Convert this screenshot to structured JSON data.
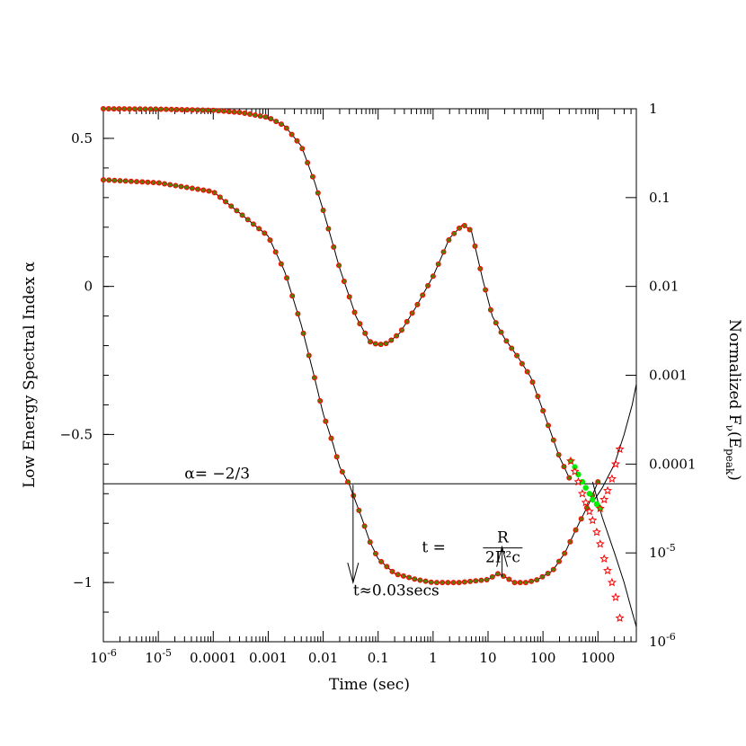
{
  "chart_data": {
    "type": "scatter",
    "title": "",
    "xlabel": "Time (sec)",
    "ylabel_left": "Low Energy Spectral Index α",
    "ylabel_right": "Normalized F_ν(E_peak)",
    "ylabel_right_parts": {
      "base": "Normalized F",
      "sub1": "ν",
      "mid": "(E",
      "sub2": "peak",
      "end": ")"
    },
    "x_scale": "log",
    "xlim": [
      1e-06,
      5000
    ],
    "ylim_left": [
      -1.2,
      0.6
    ],
    "ylim_right": [
      1e-06,
      1
    ],
    "y_scale_right": "log",
    "grid": false,
    "x_ticks": [
      {
        "value": 1e-06,
        "label": "10",
        "exp": "-6"
      },
      {
        "value": 1e-05,
        "label": "10",
        "exp": "-5"
      },
      {
        "value": 0.0001,
        "label": "0.0001",
        "exp": ""
      },
      {
        "value": 0.001,
        "label": "0.001",
        "exp": ""
      },
      {
        "value": 0.01,
        "label": "0.01",
        "exp": ""
      },
      {
        "value": 0.1,
        "label": "0.1",
        "exp": ""
      },
      {
        "value": 1,
        "label": "1",
        "exp": ""
      },
      {
        "value": 10,
        "label": "10",
        "exp": ""
      },
      {
        "value": 100,
        "label": "100",
        "exp": ""
      },
      {
        "value": 1000,
        "label": "1000",
        "exp": ""
      }
    ],
    "y_left_ticks": [
      {
        "value": 0.5,
        "label": "0.5"
      },
      {
        "value": 0,
        "label": "0"
      },
      {
        "value": -0.5,
        "label": "−0.5"
      },
      {
        "value": -1,
        "label": "−1"
      }
    ],
    "y_right_ticks": [
      {
        "value": 1,
        "label": "1",
        "exp": ""
      },
      {
        "value": 0.1,
        "label": "0.1",
        "exp": ""
      },
      {
        "value": 0.01,
        "label": "0.01",
        "exp": ""
      },
      {
        "value": 0.001,
        "label": "0.001",
        "exp": ""
      },
      {
        "value": 0.0001,
        "label": "0.0001",
        "exp": ""
      },
      {
        "value": 1e-05,
        "label": "10",
        "exp": "-5"
      },
      {
        "value": 1e-06,
        "label": "10",
        "exp": "-6"
      }
    ],
    "reference_line": {
      "value": -0.6667,
      "label": "α=  −2/3"
    },
    "series": [
      {
        "axis": "right",
        "x": [
          1e-06,
          1e-05,
          0.0001,
          0.0003,
          0.001,
          0.002,
          0.004,
          0.007,
          0.01,
          0.02,
          0.04,
          0.07,
          0.1,
          0.15,
          0.25,
          0.5,
          1,
          2,
          3.5,
          5,
          8,
          12,
          20,
          35,
          60,
          100,
          200,
          300
        ],
        "y": [
          1.0,
          0.99,
          0.96,
          0.91,
          0.8,
          0.64,
          0.38,
          0.15,
          0.072,
          0.016,
          0.0045,
          0.0024,
          0.0022,
          0.0023,
          0.003,
          0.006,
          0.013,
          0.035,
          0.05,
          0.042,
          0.012,
          0.0046,
          0.0026,
          0.0016,
          0.00095,
          0.0004,
          0.00012,
          7e-05
        ]
      },
      {
        "axis": "left",
        "x": [
          1e-06,
          1e-05,
          0.0001,
          0.001,
          0.002,
          0.004,
          0.007,
          0.01,
          0.015,
          0.02,
          0.03,
          0.05,
          0.07,
          0.1,
          0.2,
          0.5,
          1,
          3,
          10,
          15,
          20,
          30,
          50,
          80,
          150,
          250,
          400,
          700,
          1000
        ],
        "y": [
          0.36,
          0.35,
          0.32,
          0.17,
          0.05,
          -0.13,
          -0.31,
          -0.43,
          -0.53,
          -0.61,
          -0.67,
          -0.78,
          -0.86,
          -0.92,
          -0.97,
          -0.99,
          -1.0,
          -1.0,
          -0.99,
          -0.97,
          -0.98,
          -1.0,
          -1.0,
          -0.99,
          -0.96,
          -0.9,
          -0.82,
          -0.73,
          -0.66
        ]
      }
    ],
    "markers": {
      "point_color": "#00ee00",
      "star_color": "#ff0000",
      "line_color": "#000000"
    },
    "tail_green_x": [
      320,
      380,
      440,
      520,
      600,
      700,
      800,
      950,
      1100
    ],
    "tail_green_y": [
      -0.59,
      -0.61,
      -0.635,
      -0.66,
      -0.68,
      -0.7,
      -0.72,
      -0.735,
      -0.75
    ],
    "tail_red_x": [
      320,
      380,
      440,
      520,
      600,
      700,
      800,
      950,
      1100,
      1300,
      1500,
      1800,
      2100,
      2500
    ],
    "tail_red_y": [
      -0.59,
      -0.625,
      -0.66,
      -0.7,
      -0.73,
      -0.76,
      -0.79,
      -0.83,
      -0.87,
      -0.92,
      -0.96,
      -1.0,
      -1.05,
      -1.12
    ],
    "tail_red2_x": [
      1100,
      1300,
      1500,
      1800,
      2100,
      2500
    ],
    "tail_red2_y": [
      -0.75,
      -0.72,
      -0.69,
      -0.65,
      -0.6,
      -0.55
    ],
    "tail_line_rise_x": [
      800,
      1200,
      2000,
      3000,
      4200,
      5000
    ],
    "tail_line_rise_y": [
      -0.73,
      -0.68,
      -0.6,
      -0.5,
      -0.4,
      -0.33
    ],
    "tail_line_fall_x": [
      800,
      1200,
      2000,
      3000,
      4200,
      5000
    ],
    "tail_line_fall_y": [
      -0.66,
      -0.78,
      -0.9,
      -1.0,
      -1.1,
      -1.15
    ],
    "annotations": [
      {
        "text": "t≈0.03secs",
        "x": 0.035,
        "y": -1.02
      },
      {
        "text": "t  =",
        "x": 6,
        "y": -0.88
      },
      {
        "fraction_num": "R",
        "fraction_den": "2Γ²c"
      }
    ],
    "arrows": [
      {
        "x": 0.035,
        "from_y": -0.67,
        "to_y": -1.0,
        "direction": "down"
      },
      {
        "x": 18,
        "from_y": -0.98,
        "to_y": -0.88,
        "direction": "up"
      }
    ]
  }
}
